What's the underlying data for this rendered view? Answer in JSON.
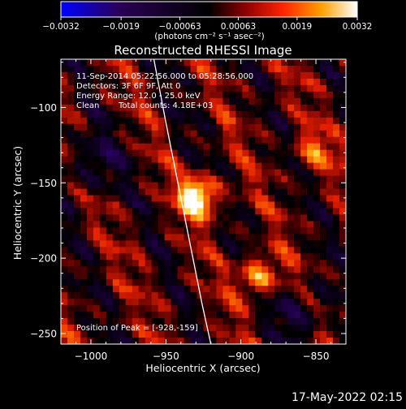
{
  "chart_data": {
    "type": "heatmap",
    "title": "Reconstructed RHESSI Image",
    "xlabel": "Heliocentric X (arcsec)",
    "ylabel": "Heliocentric Y (arcsec)",
    "xlim": [
      -1020,
      -830
    ],
    "ylim": [
      -257,
      -68
    ],
    "x_ticks": [
      -1000,
      -950,
      -900,
      -850
    ],
    "y_ticks": [
      -100,
      -150,
      -200,
      -250
    ],
    "x_tick_labels": [
      "−1000",
      "−950",
      "−900",
      "−850"
    ],
    "y_tick_labels": [
      "−100",
      "−150",
      "−200",
      "−250"
    ],
    "colorbar": {
      "range": [
        -0.0032,
        0.0032
      ],
      "ticks": [
        -0.0032,
        -0.0019,
        -0.00063,
        0.00063,
        0.0019,
        0.0032
      ],
      "tick_labels": [
        "−0.0032",
        "−0.0019",
        "−0.00063",
        "0.00063",
        "0.0019",
        "0.0032"
      ],
      "units_label": "(photons cm⁻² s⁻¹ asec⁻²)",
      "colors": [
        "#0000ff",
        "#000000",
        "#7a0000",
        "#ff2a00",
        "#ff9a00",
        "#ffffff"
      ]
    },
    "peaks": [
      {
        "x": -928,
        "y": -159,
        "value": 0.0032
      },
      {
        "x": -888,
        "y": -212,
        "value": 0.0022
      },
      {
        "x": -852,
        "y": -130,
        "value": 0.0014
      }
    ],
    "limb_curve_x": [
      -958,
      -950,
      -942,
      -934,
      -926,
      -920
    ],
    "limb_curve_y": [
      -68,
      -110,
      -150,
      -190,
      -230,
      -257
    ],
    "annotations": {
      "time_range": "11-Sep-2014 05:22:56.000 to 05:28:56.000",
      "detectors": "Detectors: 3F 6F 9F, Att 0",
      "energy": "Energy Range: 12.0 - 25.0 keV",
      "method": "Clean",
      "total_counts": "Total counts: 4.18E+03",
      "peak_position": "Position of Peak = [-928,-159]"
    }
  },
  "footer": {
    "timestamp": "17-May-2022 02:15"
  }
}
